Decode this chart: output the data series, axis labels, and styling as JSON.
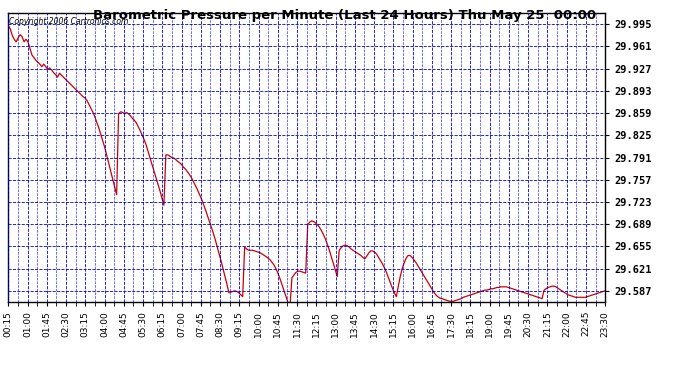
{
  "title": "Barometric Pressure per Minute (Last 24 Hours) Thu May 25  00:00",
  "copyright_text": "Copyright 2006 Cartronics.com",
  "plot_bg_color": "#ffffff",
  "line_color": "#cc0000",
  "grid_color": "#0000cc",
  "yticks": [
    29.587,
    29.621,
    29.655,
    29.689,
    29.723,
    29.757,
    29.791,
    29.825,
    29.859,
    29.893,
    29.927,
    29.961,
    29.995
  ],
  "ylim": [
    29.57,
    30.012
  ],
  "xtick_labels": [
    "00:15",
    "01:00",
    "01:45",
    "02:30",
    "03:15",
    "04:00",
    "04:45",
    "05:30",
    "06:15",
    "07:00",
    "07:45",
    "08:30",
    "09:15",
    "10:00",
    "10:45",
    "11:30",
    "12:15",
    "13:00",
    "13:45",
    "14:30",
    "15:15",
    "16:00",
    "16:45",
    "17:30",
    "18:15",
    "19:00",
    "19:45",
    "20:30",
    "21:15",
    "22:00",
    "22:45",
    "23:30"
  ],
  "pressure_data": [
    29.993,
    29.988,
    29.978,
    29.972,
    29.968,
    29.974,
    29.979,
    29.976,
    29.968,
    29.972,
    29.968,
    29.958,
    29.948,
    29.944,
    29.94,
    29.937,
    29.934,
    29.93,
    29.934,
    29.93,
    29.926,
    29.928,
    29.925,
    29.921,
    29.918,
    29.914,
    29.92,
    29.917,
    29.914,
    29.911,
    29.908,
    29.905,
    29.902,
    29.899,
    29.896,
    29.893,
    29.89,
    29.887,
    29.884,
    29.882,
    29.878,
    29.872,
    29.866,
    29.86,
    29.853,
    29.844,
    29.836,
    29.826,
    29.816,
    29.806,
    29.794,
    29.782,
    29.77,
    29.758,
    29.746,
    29.734,
    29.858,
    29.861,
    29.86,
    29.858,
    29.86,
    29.858,
    29.855,
    29.851,
    29.848,
    29.844,
    29.838,
    29.832,
    29.825,
    29.818,
    29.81,
    29.8,
    29.79,
    29.78,
    29.77,
    29.76,
    29.75,
    29.74,
    29.729,
    29.718,
    29.795,
    29.795,
    29.793,
    29.791,
    29.79,
    29.788,
    29.785,
    29.783,
    29.78,
    29.776,
    29.773,
    29.769,
    29.765,
    29.76,
    29.754,
    29.748,
    29.742,
    29.735,
    29.728,
    29.72,
    29.712,
    29.703,
    29.694,
    29.685,
    29.676,
    29.666,
    29.655,
    29.644,
    29.633,
    29.621,
    29.609,
    29.597,
    29.584,
    29.585,
    29.586,
    29.587,
    29.586,
    29.584,
    29.581,
    29.578,
    29.654,
    29.651,
    29.649,
    29.649,
    29.649,
    29.648,
    29.647,
    29.646,
    29.645,
    29.643,
    29.641,
    29.639,
    29.637,
    29.634,
    29.63,
    29.626,
    29.62,
    29.613,
    29.605,
    29.596,
    29.587,
    29.578,
    29.569,
    29.562,
    29.607,
    29.611,
    29.615,
    29.617,
    29.617,
    29.616,
    29.615,
    29.614,
    29.688,
    29.692,
    29.694,
    29.693,
    29.691,
    29.688,
    29.684,
    29.679,
    29.673,
    29.666,
    29.658,
    29.649,
    29.639,
    29.629,
    29.619,
    29.609,
    29.649,
    29.653,
    29.656,
    29.657,
    29.656,
    29.654,
    29.651,
    29.649,
    29.647,
    29.645,
    29.643,
    29.641,
    29.638,
    29.636,
    29.64,
    29.645,
    29.648,
    29.648,
    29.646,
    29.643,
    29.638,
    29.633,
    29.628,
    29.622,
    29.615,
    29.607,
    29.599,
    29.591,
    29.584,
    29.578,
    29.594,
    29.609,
    29.621,
    29.63,
    29.637,
    29.641,
    29.641,
    29.638,
    29.634,
    29.63,
    29.625,
    29.62,
    29.615,
    29.61,
    29.605,
    29.6,
    29.595,
    29.59,
    29.585,
    29.581,
    29.578,
    29.576,
    29.575,
    29.574,
    29.573,
    29.572,
    29.571,
    29.571,
    29.571,
    29.572,
    29.573,
    29.574,
    29.575,
    29.577,
    29.578,
    29.579,
    29.58,
    29.581,
    29.582,
    29.583,
    29.584,
    29.585,
    29.586,
    29.587,
    29.588,
    29.588,
    29.589,
    29.59,
    29.59,
    29.591,
    29.592,
    29.592,
    29.593,
    29.593,
    29.593,
    29.593,
    29.592,
    29.591,
    29.59,
    29.589,
    29.588,
    29.587,
    29.586,
    29.585,
    29.584,
    29.583,
    29.582,
    29.581,
    29.58,
    29.579,
    29.578,
    29.577,
    29.576,
    29.575,
    29.588,
    29.59,
    29.592,
    29.593,
    29.594,
    29.594,
    29.593,
    29.591,
    29.589,
    29.587,
    29.585,
    29.583,
    29.581,
    29.58,
    29.579,
    29.578,
    29.577,
    29.577,
    29.577,
    29.577,
    29.577,
    29.577,
    29.578,
    29.579,
    29.58,
    29.581,
    29.582,
    29.583,
    29.584,
    29.585,
    29.586,
    29.587
  ]
}
